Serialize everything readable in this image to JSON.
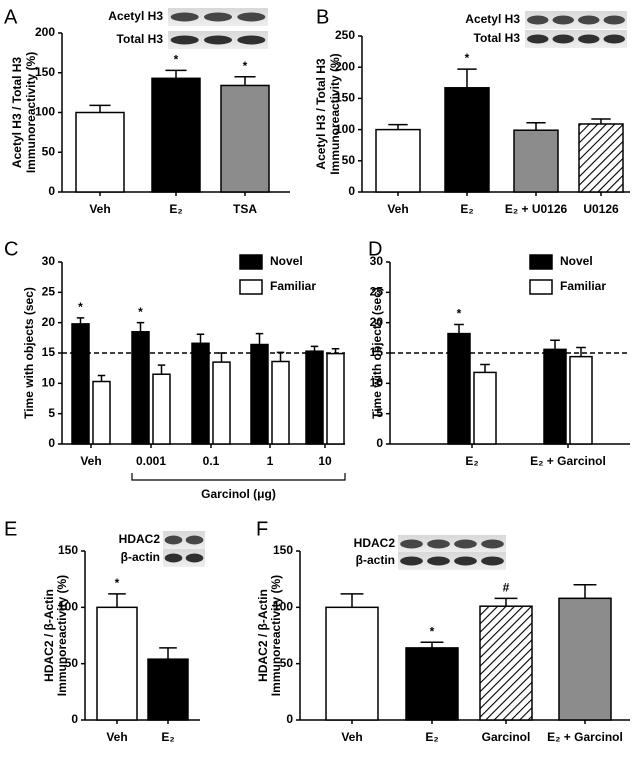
{
  "chart_data": [
    {
      "type": "bar",
      "label": "A",
      "ylabel": [
        "Acetyl H3 / Total H3",
        "Immunoreactivity (%)"
      ],
      "blot_labels": [
        "Acetyl H3",
        "Total H3"
      ],
      "categories": [
        "Veh",
        "E₂",
        "TSA"
      ],
      "values": [
        100,
        143,
        134
      ],
      "errors": [
        9,
        10,
        11
      ],
      "colors": [
        "#ffffff",
        "#000000",
        "#8c8c8c"
      ],
      "markers": [
        null,
        "*",
        "*"
      ],
      "ylim": [
        0,
        200
      ],
      "yticks": [
        0,
        50,
        100,
        150,
        200
      ]
    },
    {
      "type": "bar",
      "label": "B",
      "ylabel": [
        "Acetyl H3 / Total H3",
        "Immunoreactivity (%)"
      ],
      "blot_labels": [
        "Acetyl H3",
        "Total H3"
      ],
      "categories": [
        "Veh",
        "E₂",
        "E₂ + U0126",
        "U0126"
      ],
      "values": [
        100,
        167,
        99,
        109
      ],
      "errors": [
        8,
        30,
        12,
        8
      ],
      "colors": [
        "#ffffff",
        "#000000",
        "#8c8c8c",
        "hatch"
      ],
      "markers": [
        null,
        "*",
        null,
        null
      ],
      "ylim": [
        0,
        250
      ],
      "yticks": [
        0,
        50,
        100,
        150,
        200,
        250
      ]
    },
    {
      "type": "grouped_bar",
      "label": "C",
      "ylabel": [
        "Time with objects (sec)"
      ],
      "xlabel": "Garcinol (μg)",
      "categories": [
        "Veh",
        "0.001",
        "0.1",
        "1",
        "10"
      ],
      "series": [
        {
          "name": "Novel",
          "color": "#000000",
          "values": [
            19.8,
            18.5,
            16.6,
            16.4,
            15.3
          ],
          "errors": [
            1.0,
            1.5,
            1.5,
            1.8,
            0.8
          ],
          "markers": [
            "*",
            "*",
            null,
            null,
            null
          ]
        },
        {
          "name": "Familiar",
          "color": "#ffffff",
          "values": [
            10.3,
            11.5,
            13.5,
            13.6,
            14.9
          ],
          "errors": [
            1.0,
            1.5,
            1.5,
            1.5,
            0.8
          ],
          "markers": [
            null,
            null,
            null,
            null,
            null
          ]
        }
      ],
      "hline": 15,
      "ylim": [
        0,
        30
      ],
      "yticks": [
        0,
        5,
        10,
        15,
        20,
        25,
        30
      ]
    },
    {
      "type": "grouped_bar",
      "label": "D",
      "ylabel": [
        "Time with objects (sec)"
      ],
      "categories": [
        "E₂",
        "E₂ + Garcinol"
      ],
      "series": [
        {
          "name": "Novel",
          "color": "#000000",
          "values": [
            18.2,
            15.6
          ],
          "errors": [
            1.5,
            1.5
          ],
          "markers": [
            "*",
            null
          ]
        },
        {
          "name": "Familiar",
          "color": "#ffffff",
          "values": [
            11.8,
            14.4
          ],
          "errors": [
            1.3,
            1.5
          ],
          "markers": [
            null,
            null
          ]
        }
      ],
      "hline": 15,
      "ylim": [
        0,
        30
      ],
      "yticks": [
        0,
        5,
        10,
        15,
        20,
        25,
        30
      ]
    },
    {
      "type": "bar",
      "label": "E",
      "ylabel": [
        "HDAC2 / β-Actin",
        "Immunoreactivity (%)"
      ],
      "blot_labels": [
        "HDAC2",
        "β-actin"
      ],
      "categories": [
        "Veh",
        "E₂"
      ],
      "values": [
        100,
        54
      ],
      "errors": [
        12,
        10
      ],
      "colors": [
        "#ffffff",
        "#000000"
      ],
      "markers": [
        "*",
        null
      ],
      "ylim": [
        0,
        150
      ],
      "yticks": [
        0,
        50,
        100,
        150
      ]
    },
    {
      "type": "bar",
      "label": "F",
      "ylabel": [
        "HDAC2 / β-Actin",
        "Immunoreactivity (%)"
      ],
      "blot_labels": [
        "HDAC2",
        "β-actin"
      ],
      "categories": [
        "Veh",
        "E₂",
        "Garcinol",
        "E₂ + Garcinol"
      ],
      "values": [
        100,
        64,
        101,
        108
      ],
      "errors": [
        12,
        5,
        7,
        12
      ],
      "colors": [
        "#ffffff",
        "#000000",
        "hatch",
        "#8c8c8c"
      ],
      "markers": [
        null,
        "*",
        "#",
        null
      ],
      "ylim": [
        0,
        150
      ],
      "yticks": [
        0,
        50,
        100,
        150
      ]
    }
  ]
}
